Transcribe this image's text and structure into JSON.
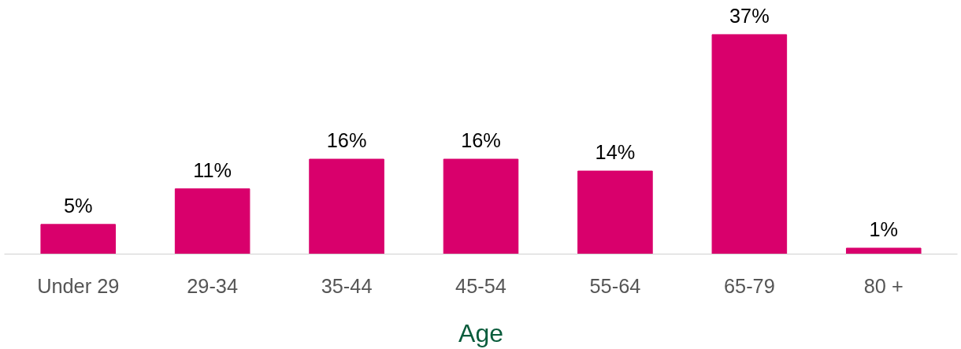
{
  "chart_data": {
    "type": "bar",
    "xlabel": "Age",
    "categories": [
      "Under 29",
      "29-34",
      "35-44",
      "45-54",
      "55-64",
      "65-79",
      "80 +"
    ],
    "values": [
      5,
      11,
      16,
      16,
      14,
      37,
      1
    ],
    "value_labels": [
      "5%",
      "11%",
      "16%",
      "16%",
      "14%",
      "37%",
      "1%"
    ],
    "color": "#d9006c",
    "grid": false
  }
}
